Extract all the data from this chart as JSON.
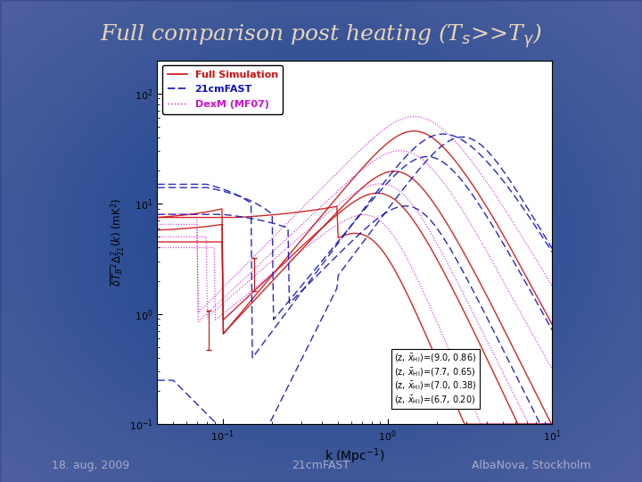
{
  "title_color": "#E8D5B8",
  "bg_color_center": "#1e3a8a",
  "bg_color_edge": "#0d1b4b",
  "footer_left": "18. aug, 2009",
  "footer_center": "21cmFAST",
  "footer_right": "AlbaNova, Stockholm",
  "footer_color": "#aaaacc",
  "xlabel": "k (Mpc$^{-1}$)",
  "ylabel": "$\\overline{\\delta T_B}^2 \\Delta^2_{21}(k)\\;(\\mathrm{mK}^2)$",
  "xmin": 0.04,
  "xmax": 10.0,
  "ymin": 0.1,
  "ymax": 200.0,
  "red": "#cc1111",
  "blue": "#1111bb",
  "magenta": "#cc11cc"
}
